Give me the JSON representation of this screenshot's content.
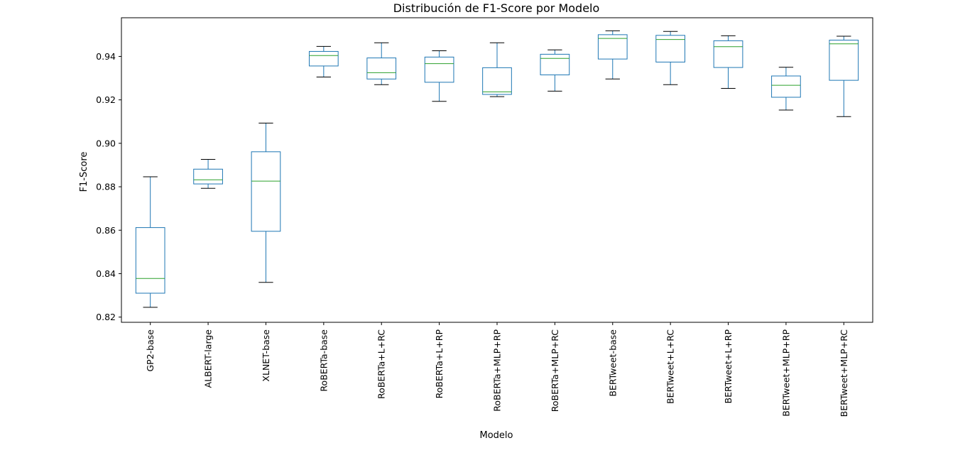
{
  "chart_data": {
    "type": "box",
    "title": "Distribución de F1-Score por Modelo",
    "xlabel": "Modelo",
    "ylabel": "F1-Score",
    "ylim": [
      0.8176,
      0.9578
    ],
    "yticks": [
      0.82,
      0.84,
      0.86,
      0.88,
      0.9,
      0.92,
      0.94
    ],
    "ytick_labels": [
      "0.82",
      "0.84",
      "0.86",
      "0.88",
      "0.90",
      "0.92",
      "0.94"
    ],
    "grid": false,
    "legend": "none",
    "colors": {
      "box": "#1f77b4",
      "median": "#2ca02c",
      "cap": "#000000",
      "frame": "#000000"
    },
    "categories": [
      "GP2-base",
      "ALBERT-large",
      "XLNET-base",
      "RoBERTa-base",
      "RoBERTa+L+RC",
      "RoBERTa+L+RP",
      "RoBERTa+MLP+RP",
      "RoBERTa+MLP+RC",
      "BERTweet-base",
      "BERTweet+L+RC",
      "BERTweet+L+RP",
      "BERTweet+MLP+RP",
      "BERTweet+MLP+RC"
    ],
    "boxes": [
      {
        "whislo": 0.8245,
        "q1": 0.831,
        "med": 0.8378,
        "q3": 0.8612,
        "whishi": 0.8846
      },
      {
        "whislo": 0.8793,
        "q1": 0.8813,
        "med": 0.8832,
        "q3": 0.8881,
        "whishi": 0.8926
      },
      {
        "whislo": 0.836,
        "q1": 0.8595,
        "med": 0.8826,
        "q3": 0.8961,
        "whishi": 0.9093
      },
      {
        "whislo": 0.9305,
        "q1": 0.9356,
        "med": 0.9404,
        "q3": 0.9423,
        "whishi": 0.9446
      },
      {
        "whislo": 0.927,
        "q1": 0.9296,
        "med": 0.9325,
        "q3": 0.9393,
        "whishi": 0.9463
      },
      {
        "whislo": 0.9193,
        "q1": 0.9281,
        "med": 0.9367,
        "q3": 0.9397,
        "whishi": 0.9426
      },
      {
        "whislo": 0.9215,
        "q1": 0.9225,
        "med": 0.9237,
        "q3": 0.9348,
        "whishi": 0.9463
      },
      {
        "whislo": 0.924,
        "q1": 0.9315,
        "med": 0.9391,
        "q3": 0.941,
        "whishi": 0.943
      },
      {
        "whislo": 0.9296,
        "q1": 0.9388,
        "med": 0.9483,
        "q3": 0.95,
        "whishi": 0.9518
      },
      {
        "whislo": 0.927,
        "q1": 0.9374,
        "med": 0.9478,
        "q3": 0.9497,
        "whishi": 0.9515
      },
      {
        "whislo": 0.9253,
        "q1": 0.9349,
        "med": 0.9445,
        "q3": 0.9472,
        "whishi": 0.9495
      },
      {
        "whislo": 0.9153,
        "q1": 0.9212,
        "med": 0.9267,
        "q3": 0.931,
        "whishi": 0.935
      },
      {
        "whislo": 0.9123,
        "q1": 0.929,
        "med": 0.9458,
        "q3": 0.9475,
        "whishi": 0.9493
      }
    ]
  }
}
